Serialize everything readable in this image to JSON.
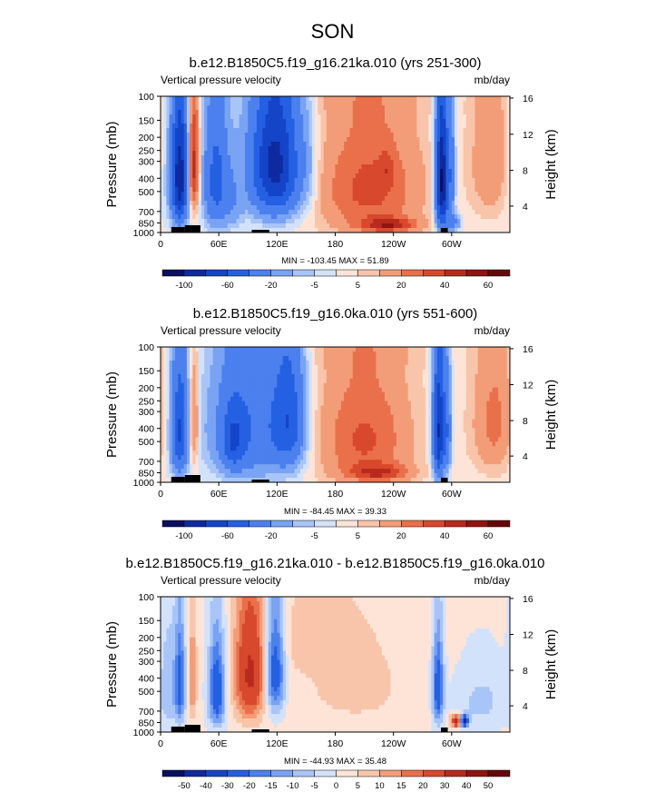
{
  "title": "SON",
  "colors": {
    "palette": [
      "#08105e",
      "#0e2a9e",
      "#1444c8",
      "#2460e2",
      "#4b80ee",
      "#79a3f3",
      "#a9c5f7",
      "#d3e2fb",
      "#fde4d6",
      "#f8c5aa",
      "#f39d78",
      "#e9704a",
      "#d8482c",
      "#b82a1c",
      "#8f1510",
      "#650808"
    ]
  },
  "chart_data": [
    {
      "type": "heatmap",
      "title": "b.e12.B1850C5.f19_g16.21ka.010 (yrs 251-300)",
      "variable_label": "Vertical pressure velocity",
      "units_label": "mb/day",
      "ylabel": "Pressure (mb)",
      "ylabel_right": "Height (km)",
      "y_ticks": [
        "100",
        "150",
        "200",
        "250",
        "300",
        "400",
        "500",
        "700",
        "850",
        "1000"
      ],
      "y_tick_values": [
        100,
        150,
        200,
        250,
        300,
        400,
        500,
        700,
        850,
        1000
      ],
      "x_ticks": [
        "0",
        "60E",
        "120E",
        "180",
        "120W",
        "60W"
      ],
      "x_tick_values": [
        0,
        60,
        120,
        180,
        240,
        300
      ],
      "xlim": [
        0,
        360
      ],
      "height_ticks": [
        "16",
        "12",
        "8",
        "4"
      ],
      "height_tick_pressures": [
        103,
        190,
        350,
        640
      ],
      "stats": "MIN = -103.45  MAX =  51.89",
      "colorbar_labels": [
        "-100",
        "-60",
        "-20",
        "-5",
        "5",
        "20",
        "40",
        "60"
      ],
      "features": [
        {
          "lon": 8,
          "lev": 380,
          "value": -8,
          "wlon": 10,
          "wlev": 650
        },
        {
          "lon": 20,
          "lev": 400,
          "value": -95,
          "wlon": 6,
          "wlev": 600
        },
        {
          "lon": 34,
          "lev": 330,
          "value": 48,
          "wlon": 4,
          "wlev": 480
        },
        {
          "lon": 57,
          "lev": 420,
          "value": -50,
          "wlon": 9,
          "wlev": 640
        },
        {
          "lon": 75,
          "lev": 600,
          "value": -15,
          "wlon": 8,
          "wlev": 500
        },
        {
          "lon": 118,
          "lev": 320,
          "value": -90,
          "wlon": 18,
          "wlev": 560
        },
        {
          "lon": 152,
          "lev": 350,
          "value": -8,
          "wlon": 8,
          "wlev": 500
        },
        {
          "lon": 215,
          "lev": 480,
          "value": 32,
          "wlon": 36,
          "wlev": 680
        },
        {
          "lon": 235,
          "lev": 880,
          "value": 38,
          "wlon": 20,
          "wlev": 160
        },
        {
          "lon": 233,
          "lev": 350,
          "value": 12,
          "wlon": 6,
          "wlev": 160
        },
        {
          "lon": 290,
          "lev": 430,
          "value": -110,
          "wlon": 4.5,
          "wlev": 650
        },
        {
          "lon": 300,
          "lev": 380,
          "value": -30,
          "wlon": 3,
          "wlev": 520
        },
        {
          "lon": 302,
          "lev": 850,
          "value": -25,
          "wlon": 5,
          "wlev": 200
        },
        {
          "lon": 340,
          "lev": 300,
          "value": 18,
          "wlon": 14,
          "wlev": 560
        },
        {
          "lon": 200,
          "lev": 105,
          "value": 3,
          "wlon": 60,
          "wlev": 60
        }
      ]
    },
    {
      "type": "heatmap",
      "title": "b.e12.B1850C5.f19_g16.0ka.010 (yrs 551-600)",
      "variable_label": "Vertical pressure velocity",
      "units_label": "mb/day",
      "ylabel": "Pressure (mb)",
      "ylabel_right": "Height (km)",
      "y_ticks": [
        "100",
        "150",
        "200",
        "250",
        "300",
        "400",
        "500",
        "700",
        "850",
        "1000"
      ],
      "y_tick_values": [
        100,
        150,
        200,
        250,
        300,
        400,
        500,
        700,
        850,
        1000
      ],
      "x_ticks": [
        "0",
        "60E",
        "120E",
        "180",
        "120W",
        "60W"
      ],
      "x_tick_values": [
        0,
        60,
        120,
        180,
        240,
        300
      ],
      "xlim": [
        0,
        360
      ],
      "height_ticks": [
        "16",
        "12",
        "8",
        "4"
      ],
      "height_tick_pressures": [
        103,
        190,
        350,
        640
      ],
      "stats": "MIN = -84.45  MAX =  39.33",
      "colorbar_labels": [
        "-100",
        "-60",
        "-20",
        "-5",
        "5",
        "20",
        "40",
        "60"
      ],
      "features": [
        {
          "lon": 8,
          "lev": 380,
          "value": -8,
          "wlon": 10,
          "wlev": 650
        },
        {
          "lon": 20,
          "lev": 420,
          "value": -60,
          "wlon": 6,
          "wlev": 600
        },
        {
          "lon": 34,
          "lev": 380,
          "value": 25,
          "wlon": 4,
          "wlev": 480
        },
        {
          "lon": 90,
          "lev": 400,
          "value": -40,
          "wlon": 28,
          "wlev": 700
        },
        {
          "lon": 75,
          "lev": 500,
          "value": -35,
          "wlon": 8,
          "wlev": 400
        },
        {
          "lon": 132,
          "lev": 350,
          "value": -50,
          "wlon": 12,
          "wlev": 560
        },
        {
          "lon": 210,
          "lev": 480,
          "value": 30,
          "wlon": 32,
          "wlev": 700
        },
        {
          "lon": 225,
          "lev": 850,
          "value": 30,
          "wlon": 22,
          "wlev": 180
        },
        {
          "lon": 287,
          "lev": 420,
          "value": -85,
          "wlon": 4.5,
          "wlev": 650
        },
        {
          "lon": 296,
          "lev": 420,
          "value": -30,
          "wlon": 3,
          "wlev": 520
        },
        {
          "lon": 345,
          "lev": 360,
          "value": 22,
          "wlon": 16,
          "wlev": 600
        },
        {
          "lon": 200,
          "lev": 105,
          "value": 3,
          "wlon": 60,
          "wlev": 60
        }
      ]
    },
    {
      "type": "heatmap",
      "title": "b.e12.B1850C5.f19_g16.21ka.010 - b.e12.B1850C5.f19_g16.0ka.010",
      "variable_label": "Vertical pressure velocity",
      "units_label": "mb/day",
      "ylabel": "Pressure (mb)",
      "ylabel_right": "Height (km)",
      "y_ticks": [
        "100",
        "150",
        "200",
        "250",
        "300",
        "400",
        "500",
        "700",
        "850",
        "1000"
      ],
      "y_tick_values": [
        100,
        150,
        200,
        250,
        300,
        400,
        500,
        700,
        850,
        1000
      ],
      "x_ticks": [
        "0",
        "60E",
        "120E",
        "180",
        "120W",
        "60W"
      ],
      "x_tick_values": [
        0,
        60,
        120,
        180,
        240,
        300
      ],
      "xlim": [
        0,
        360
      ],
      "height_ticks": [
        "16",
        "12",
        "8",
        "4"
      ],
      "height_tick_pressures": [
        103,
        190,
        350,
        640
      ],
      "stats": "MIN = -44.93  MAX =  35.48",
      "colorbar_labels": [
        "-50",
        "-40",
        "-30",
        "-20",
        "-15",
        "-10",
        "-5",
        "0",
        "5",
        "10",
        "15",
        "20",
        "30",
        "40",
        "50"
      ],
      "features": [
        {
          "lon": 8,
          "lev": 450,
          "value": -10,
          "wlon": 6,
          "wlev": 600
        },
        {
          "lon": 20,
          "lev": 450,
          "value": -25,
          "wlon": 4,
          "wlev": 560
        },
        {
          "lon": 33,
          "lev": 420,
          "value": 15,
          "wlon": 3,
          "wlev": 500
        },
        {
          "lon": 58,
          "lev": 500,
          "value": -30,
          "wlon": 6,
          "wlev": 550
        },
        {
          "lon": 92,
          "lev": 380,
          "value": 30,
          "wlon": 11,
          "wlev": 560
        },
        {
          "lon": 118,
          "lev": 350,
          "value": -30,
          "wlon": 7,
          "wlev": 500
        },
        {
          "lon": 200,
          "lev": 450,
          "value": 5,
          "wlon": 45,
          "wlev": 650
        },
        {
          "lon": 286,
          "lev": 480,
          "value": -30,
          "wlon": 4,
          "wlev": 520
        },
        {
          "lon": 305,
          "lev": 830,
          "value": 35,
          "wlon": 4,
          "wlev": 130
        },
        {
          "lon": 313,
          "lev": 830,
          "value": -45,
          "wlon": 3,
          "wlev": 120
        },
        {
          "lon": 330,
          "lev": 600,
          "value": -8,
          "wlon": 20,
          "wlev": 500
        },
        {
          "lon": 150,
          "lev": 200,
          "value": 5,
          "wlon": 30,
          "wlev": 200
        }
      ]
    }
  ]
}
